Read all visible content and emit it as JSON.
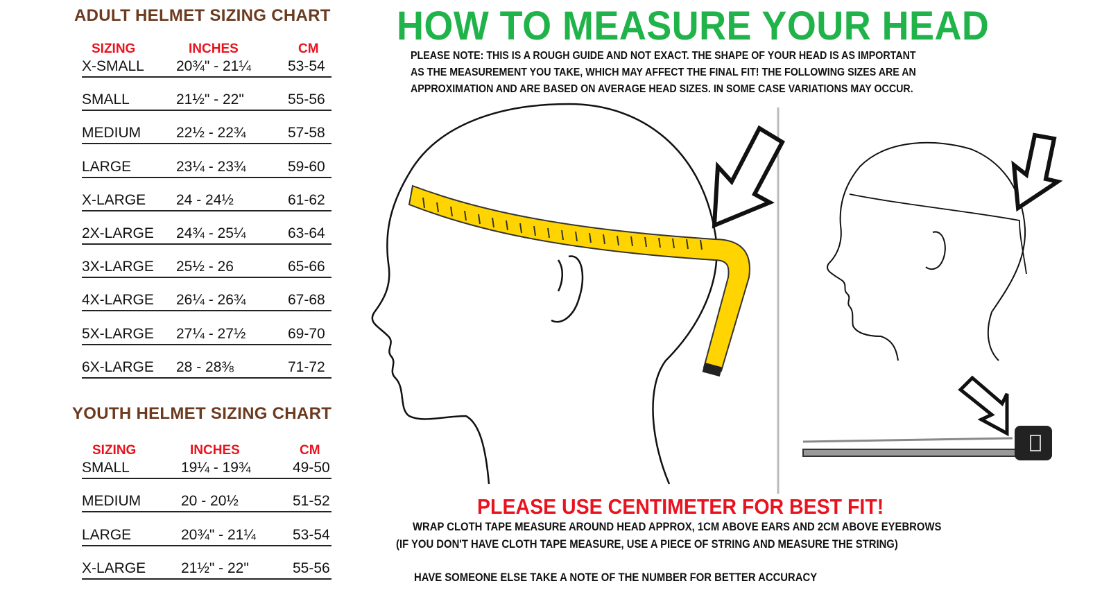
{
  "adult": {
    "title": "ADULT HELMET SIZING CHART",
    "headers": {
      "sizing": "SIZING",
      "inches": "INCHES",
      "cm": "CM"
    },
    "rows": [
      {
        "size": "X-SMALL",
        "inches": "20¾\" - 21¼",
        "cm": "53-54"
      },
      {
        "size": "SMALL",
        "inches": "21½\" - 22\"",
        "cm": "55-56"
      },
      {
        "size": "MEDIUM",
        "inches": "22½  - 22¾",
        "cm": "57-58"
      },
      {
        "size": "LARGE",
        "inches": "23¼  - 23¾",
        "cm": "59-60"
      },
      {
        "size": "X-LARGE",
        "inches": "24    - 24½",
        "cm": "61-62"
      },
      {
        "size": "2X-LARGE",
        "inches": "24¾ - 25¼",
        "cm": "63-64"
      },
      {
        "size": "3X-LARGE",
        "inches": "25½ - 26",
        "cm": "65-66"
      },
      {
        "size": "4X-LARGE",
        "inches": "26¼ - 26¾",
        "cm": "67-68"
      },
      {
        "size": "5X-LARGE",
        "inches": "27¼  - 27½",
        "cm": "69-70"
      },
      {
        "size": "6X-LARGE",
        "inches": "28    - 28⅜",
        "cm": "71-72"
      }
    ]
  },
  "youth": {
    "title": "YOUTH HELMET SIZING CHART",
    "headers": {
      "sizing": "SIZING",
      "inches": "INCHES",
      "cm": "CM"
    },
    "rows": [
      {
        "size": "SMALL",
        "inches": "19¼ -  19¾",
        "cm": "49-50"
      },
      {
        "size": "MEDIUM",
        "inches": "20    -  20½",
        "cm": "51-52"
      },
      {
        "size": "LARGE",
        "inches": "20¾\" - 21¼",
        "cm": "53-54"
      },
      {
        "size": "X-LARGE",
        "inches": "21½\" - 22\"",
        "cm": "55-56"
      }
    ]
  },
  "guide": {
    "title": "HOW TO MEASURE YOUR HEAD",
    "note_lines": [
      "PLEASE NOTE:  THIS IS A ROUGH GUIDE AND NOT EXACT.  THE SHAPE OF YOUR HEAD IS AS IMPORTANT",
      "AS THE MEASUREMENT YOU TAKE, WHICH MAY AFFECT THE FINAL FIT!  THE FOLLOWING SIZES ARE AN",
      "APPROXIMATION AND ARE BASED ON AVERAGE HEAD SIZES.  IN SOME CASE VARIATIONS MAY OCCUR."
    ],
    "emphasis": "PLEASE USE CENTIMETER FOR BEST FIT!",
    "instructions": [
      "WRAP CLOTH TAPE MEASURE AROUND HEAD APPROX, 1CM ABOVE EARS AND 2CM ABOVE EYEBROWS",
      "(IF YOU DON'T HAVE CLOTH TAPE MEASURE, USE A PIECE OF STRING AND MEASURE THE STRING)",
      "HAVE SOMEONE ELSE TAKE A NOTE OF THE NUMBER FOR BETTER ACCURACY"
    ]
  },
  "colors": {
    "title_brown": "#6b3a1f",
    "header_red": "#e8131f",
    "title_green": "#1fb34a",
    "tape_yellow": "#ffd400"
  }
}
